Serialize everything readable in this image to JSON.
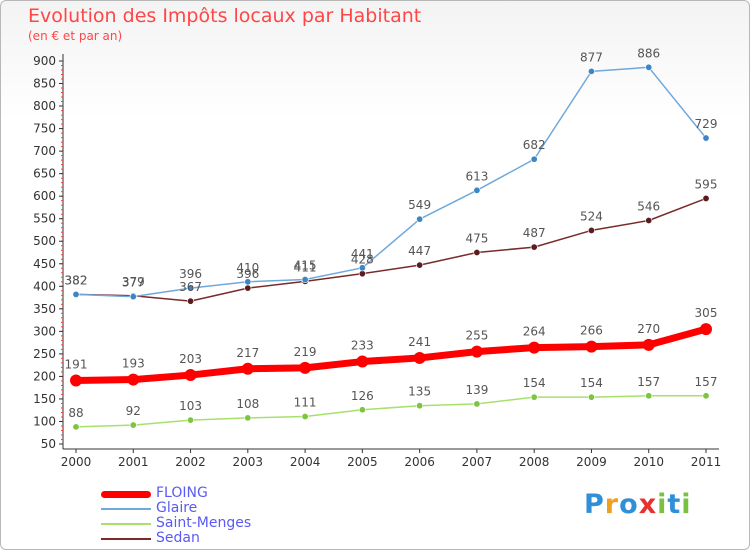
{
  "chart_data": {
    "type": "line",
    "title": "Evolution des Impôts locaux par Habitant",
    "subtitle": "(en € et par an)",
    "x": [
      "2000",
      "2001",
      "2002",
      "2003",
      "2004",
      "2005",
      "2006",
      "2007",
      "2008",
      "2009",
      "2010",
      "2011"
    ],
    "ylim": [
      50,
      900
    ],
    "yticks": [
      50,
      100,
      150,
      200,
      250,
      300,
      350,
      400,
      450,
      500,
      550,
      600,
      650,
      700,
      750,
      800,
      850,
      900
    ],
    "grid": false,
    "legend_position": "bottom-left",
    "series": [
      {
        "name": "FLOING",
        "color": "#ff0000",
        "values": [
          191,
          193,
          203,
          217,
          219,
          233,
          241,
          255,
          264,
          266,
          270,
          305
        ]
      },
      {
        "name": "Glaire",
        "color": "#6fa9db",
        "point_color": "#3d86c6",
        "values": [
          382,
          377,
          396,
          410,
          415,
          441,
          549,
          613,
          682,
          877,
          886,
          729
        ]
      },
      {
        "name": "Saint-Menges",
        "color": "#a8e06c",
        "point_color": "#7dc441",
        "values": [
          88,
          92,
          103,
          108,
          111,
          126,
          135,
          139,
          154,
          154,
          157,
          157
        ]
      },
      {
        "name": "Sedan",
        "color": "#7a2a2a",
        "point_color": "#5a1c1c",
        "values": [
          382,
          379,
          367,
          396,
          411,
          428,
          447,
          475,
          487,
          524,
          546,
          595
        ]
      }
    ]
  },
  "brand": {
    "letters": [
      {
        "ch": "P",
        "color": "#2f8fd8"
      },
      {
        "ch": "r",
        "color": "#f0a020"
      },
      {
        "ch": "o",
        "color": "#2f8fd8"
      },
      {
        "ch": "x",
        "color": "#e83030"
      },
      {
        "ch": "i",
        "color": "#7ac143"
      },
      {
        "ch": "t",
        "color": "#2f8fd8"
      },
      {
        "ch": "i",
        "color": "#7ac143"
      }
    ]
  }
}
